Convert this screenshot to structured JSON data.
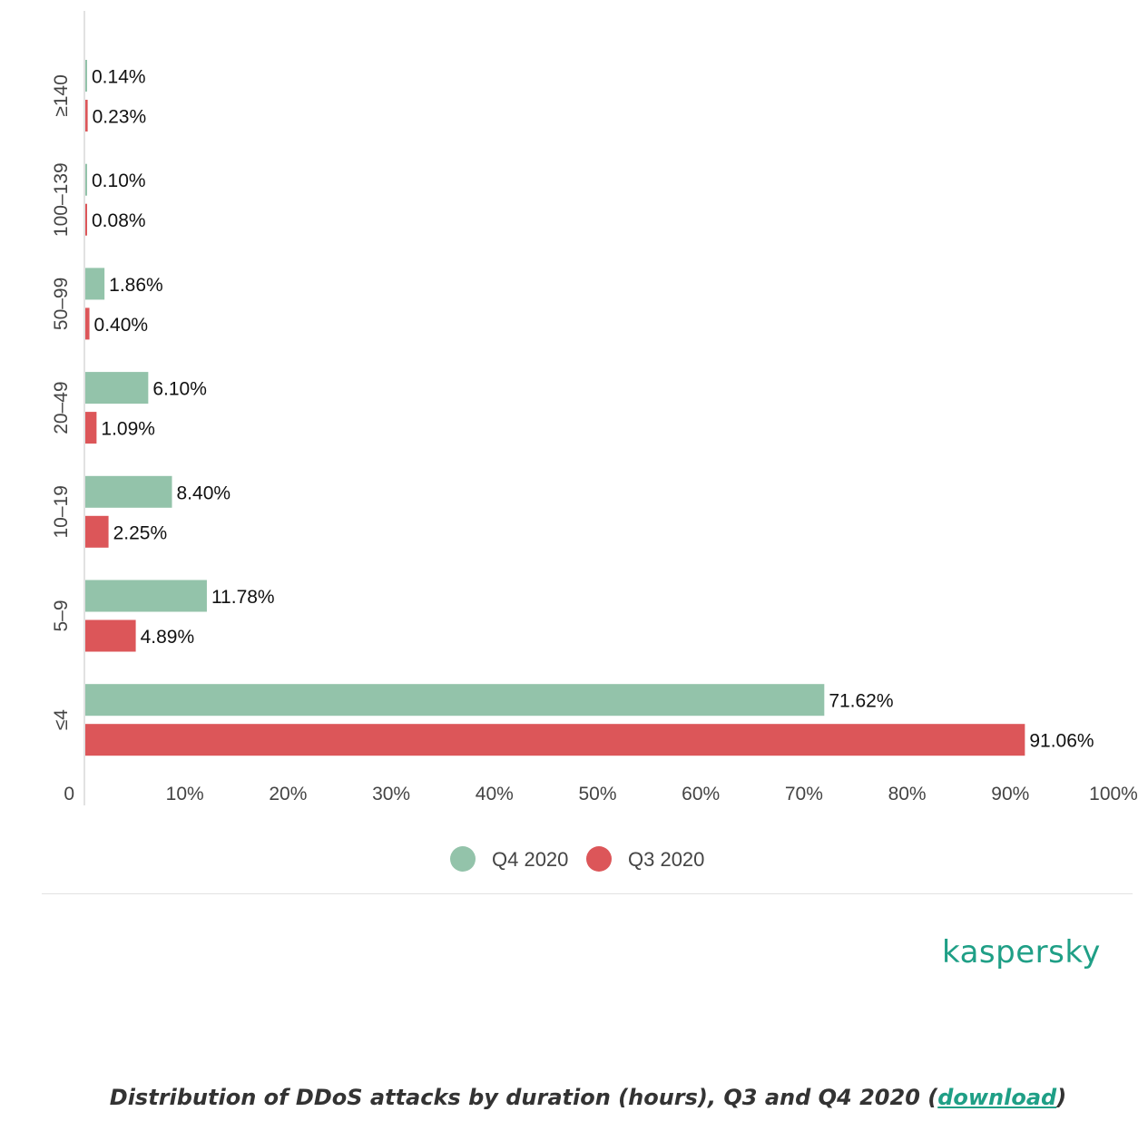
{
  "colors": {
    "q4": "#93c3aa",
    "q3": "#dc5659",
    "axis_text": "#444444",
    "label_text": "#111111",
    "brand": "#1f9f86"
  },
  "chart_data": {
    "type": "bar",
    "orientation": "horizontal",
    "categories": [
      "≥140",
      "100–139",
      "50–99",
      "20–49",
      "10–19",
      "5–9",
      "≤4"
    ],
    "series": [
      {
        "name": "Q4 2020",
        "values": [
          0.14,
          0.1,
          1.86,
          6.1,
          8.4,
          11.78,
          71.62
        ],
        "labels": [
          "0.14%",
          "0.10%",
          "1.86%",
          "6.10%",
          "8.40%",
          "11.78%",
          "71.62%"
        ]
      },
      {
        "name": "Q3 2020",
        "values": [
          0.23,
          0.08,
          0.4,
          1.09,
          2.25,
          4.89,
          91.06
        ],
        "labels": [
          "0.23%",
          "0.08%",
          "0.40%",
          "1.09%",
          "2.25%",
          "4.89%",
          "91.06%"
        ]
      }
    ],
    "xlim": [
      0,
      100
    ],
    "xticks": [
      "0",
      "10%",
      "20%",
      "30%",
      "40%",
      "50%",
      "60%",
      "70%",
      "80%",
      "90%",
      "100%"
    ],
    "legend_position": "bottom",
    "grid": false
  },
  "brand": "kaspersky",
  "caption": {
    "text": "Distribution of DDoS attacks by duration (hours), Q3 and Q4 2020 (",
    "link": "download",
    "close": ")"
  }
}
